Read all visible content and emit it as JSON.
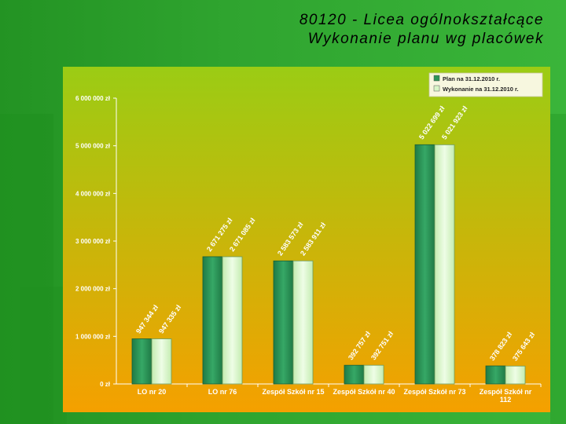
{
  "slide": {
    "title_line1": "80120 - Licea ogólnokształcące",
    "title_line2": "Wykonanie planu wg placówek"
  },
  "colors": {
    "plan": "#2e9457",
    "wykonanie": "#d8f5c8",
    "plot_top": "#9bcc14",
    "plot_bottom": "#f5a000"
  },
  "chart_data": {
    "type": "bar",
    "categories": [
      "LO nr 20",
      "LO nr 76",
      "Zespół Szkół nr 15",
      "Zespół Szkół nr 40",
      "Zespół Szkół nr 73",
      "Zespół Szkół nr 112"
    ],
    "category_lines": [
      [
        "LO nr 20"
      ],
      [
        "LO nr 76"
      ],
      [
        "Zespół Szkół nr 15"
      ],
      [
        "Zespół Szkół nr 40"
      ],
      [
        "Zespół Szkół nr 73"
      ],
      [
        "Zespół Szkół nr",
        "112"
      ]
    ],
    "series": [
      {
        "name": "Plan na 31.12.2010 r.",
        "values": [
          947344,
          2671275,
          2583573,
          392757,
          5022699,
          378823
        ],
        "labels": [
          "947 344 zł",
          "2 671 275 zł",
          "2 583 573 zł",
          "392 757 zł",
          "5 022 699 zł",
          "378 823 zł"
        ]
      },
      {
        "name": "Wykonanie na 31.12.2010 r.",
        "values": [
          947335,
          2671085,
          2583911,
          392751,
          5021923,
          375643
        ],
        "labels": [
          "947 335 zł",
          "2 671 085 zł",
          "2 583 911 zł",
          "392 751 zł",
          "5 021 923 zł",
          "375 643 zł"
        ]
      }
    ],
    "ylim": [
      0,
      6000000
    ],
    "yticks": [
      0,
      1000000,
      2000000,
      3000000,
      4000000,
      5000000,
      6000000
    ],
    "ytick_labels": [
      "0 zł",
      "1 000 000 zł",
      "2 000 000 zł",
      "3 000 000 zł",
      "4 000 000 zł",
      "5 000 000 zł",
      "6 000 000 zł"
    ],
    "legend_position": "top-right",
    "grid": false
  }
}
